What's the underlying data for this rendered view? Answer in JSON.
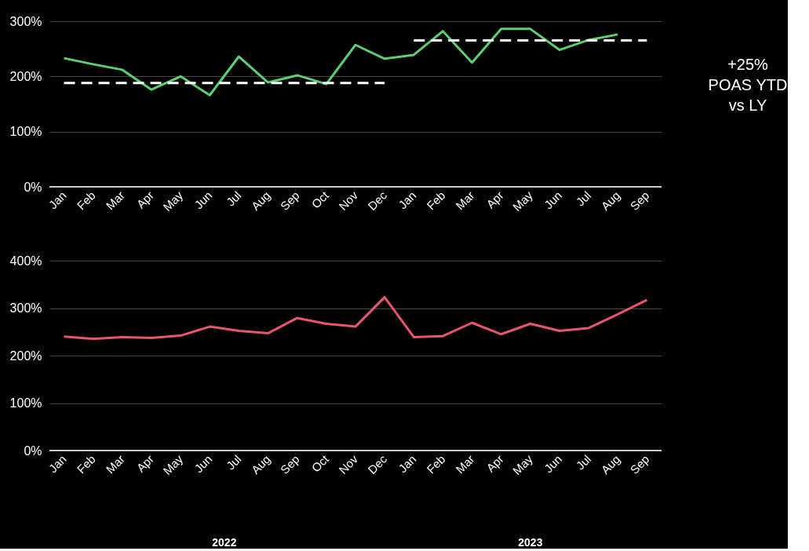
{
  "chart_data": [
    {
      "type": "line",
      "categories": [
        "Jan",
        "Feb",
        "Mar",
        "Apr",
        "May",
        "Jun",
        "Jul",
        "Aug",
        "Sep",
        "Oct",
        "Nov",
        "Dec",
        "Jan",
        "Feb",
        "Mar",
        "Apr",
        "May",
        "Jun",
        "Jul",
        "Aug",
        "Sep"
      ],
      "series": [
        {
          "color": "#5ad072",
          "line_style": "solid",
          "values": [
            233,
            222,
            212,
            176,
            200,
            166,
            236,
            189,
            202,
            186,
            257,
            232,
            239,
            282,
            225,
            286,
            286,
            248,
            266,
            276,
            null
          ]
        },
        {
          "color": "#ffffff",
          "line_style": "dashed",
          "values": [
            188,
            188,
            188,
            188,
            188,
            188,
            188,
            188,
            188,
            188,
            188,
            188,
            null,
            null,
            null,
            null,
            null,
            null,
            null,
            null,
            null
          ]
        },
        {
          "color": "#ffffff",
          "line_style": "dashed",
          "values": [
            null,
            null,
            null,
            null,
            null,
            null,
            null,
            null,
            null,
            null,
            null,
            null,
            265,
            265,
            265,
            265,
            265,
            265,
            265,
            265,
            265
          ]
        }
      ],
      "ylim": [
        0,
        300
      ],
      "yticks": [
        {
          "value": 0,
          "label": "0%"
        },
        {
          "value": 100,
          "label": "100%"
        },
        {
          "value": 200,
          "label": "200%"
        },
        {
          "value": 300,
          "label": "300%"
        }
      ],
      "grid": "y",
      "marker": "none",
      "annotations": [
        "+25%\nPOAS YTD\nvs LY"
      ]
    },
    {
      "type": "line",
      "categories": [
        "Jan",
        "Feb",
        "Mar",
        "Apr",
        "May",
        "Jun",
        "Jul",
        "Aug",
        "Sep",
        "Oct",
        "Nov",
        "Dec",
        "Jan",
        "Feb",
        "Mar",
        "Apr",
        "May",
        "Jun",
        "Jul",
        "Aug",
        "Sep"
      ],
      "series": [
        {
          "color": "#e8566e",
          "line_style": "solid",
          "values": [
            240,
            235,
            239,
            237,
            242,
            261,
            252,
            247,
            279,
            267,
            261,
            323,
            239,
            241,
            269,
            245,
            267,
            252,
            258,
            287,
            317
          ]
        }
      ],
      "ylim": [
        0,
        400
      ],
      "yticks": [
        {
          "value": 0,
          "label": "0%"
        },
        {
          "value": 100,
          "label": "100%"
        },
        {
          "value": 200,
          "label": "200%"
        },
        {
          "value": 300,
          "label": "300%"
        },
        {
          "value": 400,
          "label": "400%"
        }
      ],
      "grid": "y",
      "marker": "none",
      "annotations": [
        "2022",
        "2023"
      ]
    }
  ]
}
